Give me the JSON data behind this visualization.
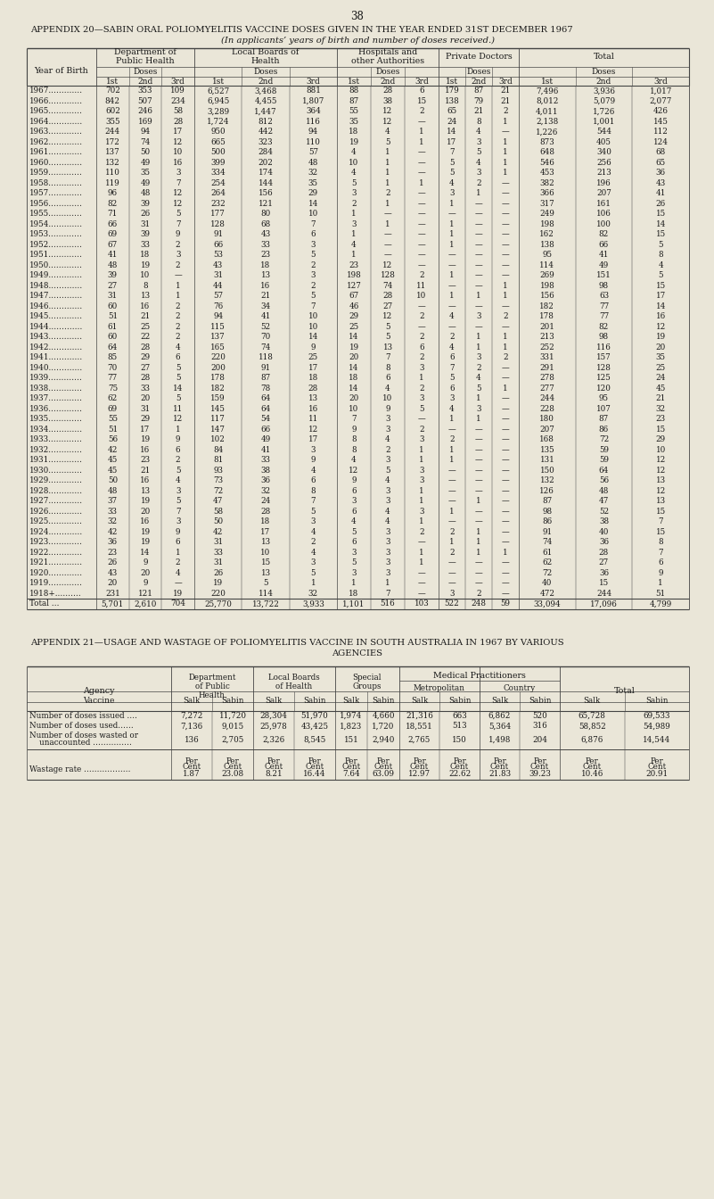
{
  "page_num": "38",
  "title1": "APPENDIX 20—SABIN ORAL POLIOMYELITIS VACCINE DOSES GIVEN IN THE YEAR ENDED 31ST DECEMBER 1967",
  "title1_sub": "(In applicants’ years of birth and number of doses received.)",
  "table1_rows": [
    [
      "1967.…………",
      "702",
      "353",
      "109",
      "6,527",
      "3,468",
      "881",
      "88",
      "28",
      "6",
      "179",
      "87",
      "21",
      "7,496",
      "3,936",
      "1,017"
    ],
    [
      "1966.…………",
      "842",
      "507",
      "234",
      "6,945",
      "4,455",
      "1,807",
      "87",
      "38",
      "15",
      "138",
      "79",
      "21",
      "8,012",
      "5,079",
      "2,077"
    ],
    [
      "1965.…………",
      "602",
      "246",
      "58",
      "3,289",
      "1,447",
      "364",
      "55",
      "12",
      "2",
      "65",
      "21",
      "2",
      "4,011",
      "1,726",
      "426"
    ],
    [
      "1964.…………",
      "355",
      "169",
      "28",
      "1,724",
      "812",
      "116",
      "35",
      "12",
      "—",
      "24",
      "8",
      "1",
      "2,138",
      "1,001",
      "145"
    ],
    [
      "1963.…………",
      "244",
      "94",
      "17",
      "950",
      "442",
      "94",
      "18",
      "4",
      "1",
      "14",
      "4",
      "—",
      "1,226",
      "544",
      "112"
    ],
    [
      "1962.…………",
      "172",
      "74",
      "12",
      "665",
      "323",
      "110",
      "19",
      "5",
      "1",
      "17",
      "3",
      "1",
      "873",
      "405",
      "124"
    ],
    [
      "1961.…………",
      "137",
      "50",
      "10",
      "500",
      "284",
      "57",
      "4",
      "1",
      "—",
      "7",
      "5",
      "1",
      "648",
      "340",
      "68"
    ],
    [
      "1960.…………",
      "132",
      "49",
      "16",
      "399",
      "202",
      "48",
      "10",
      "1",
      "—",
      "5",
      "4",
      "1",
      "546",
      "256",
      "65"
    ],
    [
      "1959.…………",
      "110",
      "35",
      "3",
      "334",
      "174",
      "32",
      "4",
      "1",
      "—",
      "5",
      "3",
      "1",
      "453",
      "213",
      "36"
    ],
    [
      "1958.…………",
      "119",
      "49",
      "7",
      "254",
      "144",
      "35",
      "5",
      "1",
      "1",
      "4",
      "2",
      "—",
      "382",
      "196",
      "43"
    ],
    [
      "1957.…………",
      "96",
      "48",
      "12",
      "264",
      "156",
      "29",
      "3",
      "2",
      "—",
      "3",
      "1",
      "—",
      "366",
      "207",
      "41"
    ],
    [
      "1956.…………",
      "82",
      "39",
      "12",
      "232",
      "121",
      "14",
      "2",
      "1",
      "—",
      "1",
      "—",
      "—",
      "317",
      "161",
      "26"
    ],
    [
      "1955.…………",
      "71",
      "26",
      "5",
      "177",
      "80",
      "10",
      "1",
      "—",
      "—",
      "—",
      "—",
      "—",
      "249",
      "106",
      "15"
    ],
    [
      "1954.…………",
      "66",
      "31",
      "7",
      "128",
      "68",
      "7",
      "3",
      "1",
      "—",
      "1",
      "—",
      "—",
      "198",
      "100",
      "14"
    ],
    [
      "1953.…………",
      "69",
      "39",
      "9",
      "91",
      "43",
      "6",
      "1",
      "—",
      "—",
      "1",
      "—",
      "—",
      "162",
      "82",
      "15"
    ],
    [
      "1952.…………",
      "67",
      "33",
      "2",
      "66",
      "33",
      "3",
      "4",
      "—",
      "—",
      "1",
      "—",
      "—",
      "138",
      "66",
      "5"
    ],
    [
      "1951.…………",
      "41",
      "18",
      "3",
      "53",
      "23",
      "5",
      "1",
      "—",
      "—",
      "—",
      "—",
      "—",
      "95",
      "41",
      "8"
    ],
    [
      "1950.…………",
      "48",
      "19",
      "2",
      "43",
      "18",
      "2",
      "23",
      "12",
      "—",
      "—",
      "—",
      "—",
      "114",
      "49",
      "4"
    ],
    [
      "1949.…………",
      "39",
      "10",
      "—",
      "31",
      "13",
      "3",
      "198",
      "128",
      "2",
      "1",
      "—",
      "—",
      "269",
      "151",
      "5"
    ],
    [
      "1948.…………",
      "27",
      "8",
      "1",
      "44",
      "16",
      "2",
      "127",
      "74",
      "11",
      "—",
      "—",
      "1",
      "198",
      "98",
      "15"
    ],
    [
      "1947.…………",
      "31",
      "13",
      "1",
      "57",
      "21",
      "5",
      "67",
      "28",
      "10",
      "1",
      "1",
      "1",
      "156",
      "63",
      "17"
    ],
    [
      "1946.…………",
      "60",
      "16",
      "2",
      "76",
      "34",
      "7",
      "46",
      "27",
      "—",
      "—",
      "—",
      "—",
      "182",
      "77",
      "14"
    ],
    [
      "1945.…………",
      "51",
      "21",
      "2",
      "94",
      "41",
      "10",
      "29",
      "12",
      "2",
      "4",
      "3",
      "2",
      "178",
      "77",
      "16"
    ],
    [
      "1944.…………",
      "61",
      "25",
      "2",
      "115",
      "52",
      "10",
      "25",
      "5",
      "—",
      "—",
      "—",
      "—",
      "201",
      "82",
      "12"
    ],
    [
      "1943.…………",
      "60",
      "22",
      "2",
      "137",
      "70",
      "14",
      "14",
      "5",
      "2",
      "2",
      "1",
      "1",
      "213",
      "98",
      "19"
    ],
    [
      "1942.…………",
      "64",
      "28",
      "4",
      "165",
      "74",
      "9",
      "19",
      "13",
      "6",
      "4",
      "1",
      "1",
      "252",
      "116",
      "20"
    ],
    [
      "1941.…………",
      "85",
      "29",
      "6",
      "220",
      "118",
      "25",
      "20",
      "7",
      "2",
      "6",
      "3",
      "2",
      "331",
      "157",
      "35"
    ],
    [
      "1940.…………",
      "70",
      "27",
      "5",
      "200",
      "91",
      "17",
      "14",
      "8",
      "3",
      "7",
      "2",
      "—",
      "291",
      "128",
      "25"
    ],
    [
      "1939.…………",
      "77",
      "28",
      "5",
      "178",
      "87",
      "18",
      "18",
      "6",
      "1",
      "5",
      "4",
      "—",
      "278",
      "125",
      "24"
    ],
    [
      "1938.…………",
      "75",
      "33",
      "14",
      "182",
      "78",
      "28",
      "14",
      "4",
      "2",
      "6",
      "5",
      "1",
      "277",
      "120",
      "45"
    ],
    [
      "1937.…………",
      "62",
      "20",
      "5",
      "159",
      "64",
      "13",
      "20",
      "10",
      "3",
      "3",
      "1",
      "—",
      "244",
      "95",
      "21"
    ],
    [
      "1936.…………",
      "69",
      "31",
      "11",
      "145",
      "64",
      "16",
      "10",
      "9",
      "5",
      "4",
      "3",
      "—",
      "228",
      "107",
      "32"
    ],
    [
      "1935.…………",
      "55",
      "29",
      "12",
      "117",
      "54",
      "11",
      "7",
      "3",
      "—",
      "1",
      "1",
      "—",
      "180",
      "87",
      "23"
    ],
    [
      "1934.…………",
      "51",
      "17",
      "1",
      "147",
      "66",
      "12",
      "9",
      "3",
      "2",
      "—",
      "—",
      "—",
      "207",
      "86",
      "15"
    ],
    [
      "1933.…………",
      "56",
      "19",
      "9",
      "102",
      "49",
      "17",
      "8",
      "4",
      "3",
      "2",
      "—",
      "—",
      "168",
      "72",
      "29"
    ],
    [
      "1932.…………",
      "42",
      "16",
      "6",
      "84",
      "41",
      "3",
      "8",
      "2",
      "1",
      "1",
      "—",
      "—",
      "135",
      "59",
      "10"
    ],
    [
      "1931.…………",
      "45",
      "23",
      "2",
      "81",
      "33",
      "9",
      "4",
      "3",
      "1",
      "1",
      "—",
      "—",
      "131",
      "59",
      "12"
    ],
    [
      "1930.…………",
      "45",
      "21",
      "5",
      "93",
      "38",
      "4",
      "12",
      "5",
      "3",
      "—",
      "—",
      "—",
      "150",
      "64",
      "12"
    ],
    [
      "1929.…………",
      "50",
      "16",
      "4",
      "73",
      "36",
      "6",
      "9",
      "4",
      "3",
      "—",
      "—",
      "—",
      "132",
      "56",
      "13"
    ],
    [
      "1928.…………",
      "48",
      "13",
      "3",
      "72",
      "32",
      "8",
      "6",
      "3",
      "1",
      "—",
      "—",
      "—",
      "126",
      "48",
      "12"
    ],
    [
      "1927.…………",
      "37",
      "19",
      "5",
      "47",
      "24",
      "7",
      "3",
      "3",
      "1",
      "—",
      "1",
      "—",
      "87",
      "47",
      "13"
    ],
    [
      "1926.…………",
      "33",
      "20",
      "7",
      "58",
      "28",
      "5",
      "6",
      "4",
      "3",
      "1",
      "—",
      "—",
      "98",
      "52",
      "15"
    ],
    [
      "1925.…………",
      "32",
      "16",
      "3",
      "50",
      "18",
      "3",
      "4",
      "4",
      "1",
      "—",
      "—",
      "—",
      "86",
      "38",
      "7"
    ],
    [
      "1924.…………",
      "42",
      "19",
      "9",
      "42",
      "17",
      "4",
      "5",
      "3",
      "2",
      "2",
      "1",
      "—",
      "91",
      "40",
      "15"
    ],
    [
      "1923.…………",
      "36",
      "19",
      "6",
      "31",
      "13",
      "2",
      "6",
      "3",
      "—",
      "1",
      "1",
      "—",
      "74",
      "36",
      "8"
    ],
    [
      "1922.…………",
      "23",
      "14",
      "1",
      "33",
      "10",
      "4",
      "3",
      "3",
      "1",
      "2",
      "1",
      "1",
      "61",
      "28",
      "7"
    ],
    [
      "1921.…………",
      "26",
      "9",
      "2",
      "31",
      "15",
      "3",
      "5",
      "3",
      "1",
      "—",
      "—",
      "—",
      "62",
      "27",
      "6"
    ],
    [
      "1920.…………",
      "43",
      "20",
      "4",
      "26",
      "13",
      "5",
      "3",
      "3",
      "—",
      "—",
      "—",
      "—",
      "72",
      "36",
      "9"
    ],
    [
      "1919.…………",
      "20",
      "9",
      "—",
      "19",
      "5",
      "1",
      "1",
      "1",
      "—",
      "—",
      "—",
      "—",
      "40",
      "15",
      "1"
    ],
    [
      "1918+.………",
      "231",
      "121",
      "19",
      "220",
      "114",
      "32",
      "18",
      "7",
      "—",
      "3",
      "2",
      "—",
      "472",
      "244",
      "51"
    ]
  ],
  "table1_total": [
    "Total …",
    "5,701",
    "2,610",
    "704",
    "25,770",
    "13,722",
    "3,933",
    "1,101",
    "516",
    "103",
    "522",
    "248",
    "59",
    "33,094",
    "17,096",
    "4,799"
  ],
  "title2a": "APPENDIX 21—USAGE AND WASTAGE OF POLIOMYELITIS VACCINE IN SOUTH AUSTRALIA IN 1967 BY VARIOUS",
  "title2b": "AGENCIES",
  "table2_rows": [
    [
      "Number of doses issued ….",
      "7,272",
      "11,720",
      "28,304",
      "51,970",
      "1,974",
      "4,660",
      "21,316",
      "663",
      "6,862",
      "520",
      "65,728",
      "69,533"
    ],
    [
      "Number of doses used……",
      "7,136",
      "9,015",
      "25,978",
      "43,425",
      "1,823",
      "1,720",
      "18,551",
      "513",
      "5,364",
      "316",
      "58,852",
      "54,989"
    ],
    [
      "Number of doses wasted or",
      "136",
      "2,705",
      "2,326",
      "8,545",
      "151",
      "2,940",
      "2,765",
      "150",
      "1,498",
      "204",
      "6,876",
      "14,544"
    ]
  ],
  "table2_unaccounted": "    unaccounted ……………",
  "wastage_label": "Wastage rate ………………",
  "wastage_salk": [
    "1.87",
    "8.21",
    "7.64",
    "12.97",
    "21.83",
    "10.46"
  ],
  "wastage_sabin": [
    "23.08",
    "16.44",
    "63.09",
    "22.62",
    "39.23",
    "20.91"
  ],
  "bg_color": "#eae6d8",
  "text_color": "#1a1a1a",
  "line_color": "#444444"
}
